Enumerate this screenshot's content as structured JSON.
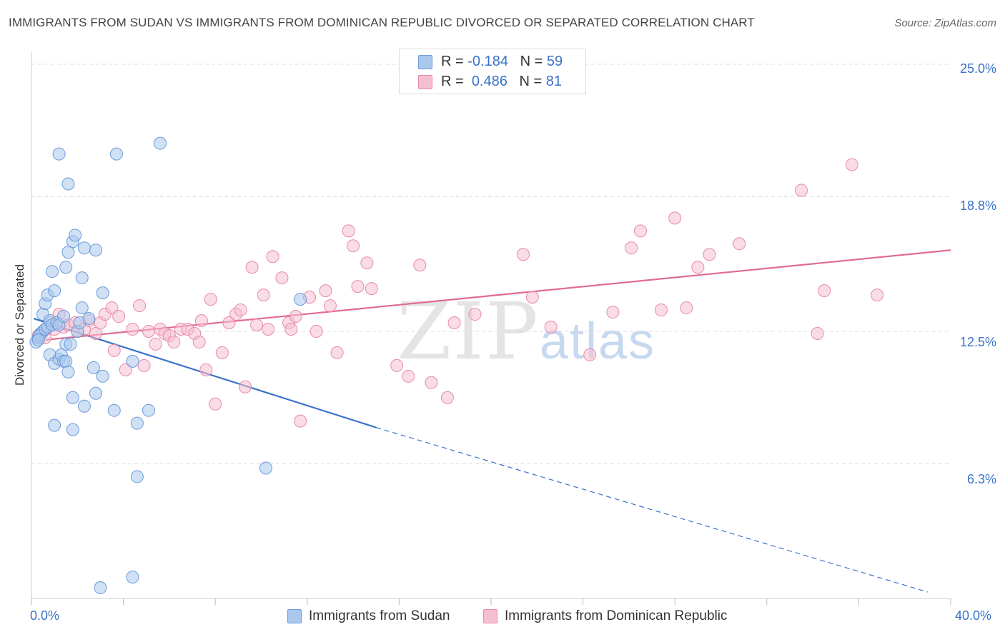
{
  "title": "IMMIGRANTS FROM SUDAN VS IMMIGRANTS FROM DOMINICAN REPUBLIC DIVORCED OR SEPARATED CORRELATION CHART",
  "source": "Source: ZipAtlas.com",
  "watermark": {
    "zip": "ZIP",
    "atlas": "atlas"
  },
  "legend_top": [
    {
      "r_label": "R = ",
      "r_value": "-0.184",
      "n_label": "N = ",
      "n_value": "59"
    },
    {
      "r_label": "R = ",
      "r_value": "0.486",
      "n_label": "N = ",
      "n_value": "81"
    }
  ],
  "colors": {
    "sudan_fill": "#a9c8ee",
    "sudan_stroke": "#6b9bd8",
    "sudan_line": "#3a72c9",
    "dr_fill": "#f6bfd0",
    "dr_stroke": "#e88aa8",
    "dr_line": "#e06b92",
    "grid": "#dddddd"
  },
  "chart_data": {
    "type": "scatter",
    "title": "IMMIGRANTS FROM SUDAN VS IMMIGRANTS FROM DOMINICAN REPUBLIC DIVORCED OR SEPARATED CORRELATION CHART",
    "xlabel": "",
    "ylabel": "Divorced or Separated",
    "xlim": [
      0,
      40
    ],
    "ylim": [
      0,
      25.6
    ],
    "x_tick_labels": [
      "0.0%",
      "40.0%"
    ],
    "y_ticks": [
      6.3,
      12.5,
      18.8,
      25.0
    ],
    "y_tick_labels": [
      "6.3%",
      "12.5%",
      "18.8%",
      "25.0%"
    ],
    "grid": true,
    "legend_position": "top-center",
    "series": [
      {
        "name": "Immigrants from Sudan",
        "r": -0.184,
        "n": 59,
        "trend": {
          "x0": 0.1,
          "y0": 13.1,
          "x1": 15.0,
          "y1": 8.0,
          "dash_x1": 39.0,
          "dash_y1": 0.3
        },
        "points": [
          [
            0.2,
            12.0
          ],
          [
            0.3,
            12.2
          ],
          [
            0.4,
            12.4
          ],
          [
            0.5,
            12.5
          ],
          [
            0.35,
            12.3
          ],
          [
            0.6,
            12.6
          ],
          [
            0.5,
            13.3
          ],
          [
            0.7,
            12.7
          ],
          [
            0.8,
            13.0
          ],
          [
            0.9,
            12.8
          ],
          [
            1.1,
            12.9
          ],
          [
            1.2,
            12.8
          ],
          [
            0.6,
            13.8
          ],
          [
            0.7,
            14.2
          ],
          [
            0.8,
            11.4
          ],
          [
            0.9,
            15.3
          ],
          [
            1.0,
            14.4
          ],
          [
            1.0,
            11.0
          ],
          [
            1.2,
            11.2
          ],
          [
            1.3,
            11.4
          ],
          [
            1.4,
            11.1
          ],
          [
            1.5,
            11.9
          ],
          [
            1.4,
            13.2
          ],
          [
            1.5,
            11.1
          ],
          [
            1.6,
            10.6
          ],
          [
            1.7,
            11.9
          ],
          [
            1.5,
            15.5
          ],
          [
            1.6,
            16.2
          ],
          [
            1.8,
            16.7
          ],
          [
            1.9,
            17.0
          ],
          [
            1.8,
            9.4
          ],
          [
            2.0,
            12.5
          ],
          [
            2.1,
            12.9
          ],
          [
            2.2,
            13.6
          ],
          [
            2.2,
            15.0
          ],
          [
            2.3,
            9.0
          ],
          [
            2.3,
            16.4
          ],
          [
            2.8,
            16.3
          ],
          [
            2.5,
            13.1
          ],
          [
            2.7,
            10.8
          ],
          [
            2.8,
            9.6
          ],
          [
            3.1,
            10.4
          ],
          [
            3.1,
            14.3
          ],
          [
            1.2,
            20.8
          ],
          [
            1.6,
            19.4
          ],
          [
            3.7,
            20.8
          ],
          [
            5.6,
            21.3
          ],
          [
            3.6,
            8.8
          ],
          [
            4.4,
            11.1
          ],
          [
            4.6,
            8.2
          ],
          [
            5.1,
            8.8
          ],
          [
            4.6,
            5.7
          ],
          [
            10.2,
            6.1
          ],
          [
            11.7,
            14.0
          ],
          [
            3.0,
            0.5
          ],
          [
            4.4,
            1.0
          ],
          [
            1.0,
            8.1
          ],
          [
            1.8,
            7.9
          ],
          [
            0.3,
            12.1
          ]
        ]
      },
      {
        "name": "Immigrants from Dominican Republic",
        "r": 0.486,
        "n": 81,
        "trend": {
          "x0": 0.6,
          "y0": 12.1,
          "x1": 40.0,
          "y1": 16.3
        },
        "points": [
          [
            0.3,
            12.3
          ],
          [
            0.5,
            12.5
          ],
          [
            0.6,
            12.2
          ],
          [
            0.8,
            12.9
          ],
          [
            1.0,
            12.6
          ],
          [
            1.2,
            13.3
          ],
          [
            1.4,
            12.7
          ],
          [
            1.6,
            12.8
          ],
          [
            1.9,
            12.9
          ],
          [
            2.0,
            12.5
          ],
          [
            2.3,
            12.6
          ],
          [
            2.5,
            13.0
          ],
          [
            2.8,
            12.4
          ],
          [
            3.0,
            12.9
          ],
          [
            3.2,
            13.3
          ],
          [
            3.5,
            13.6
          ],
          [
            3.6,
            11.6
          ],
          [
            3.8,
            13.2
          ],
          [
            4.1,
            10.7
          ],
          [
            4.4,
            12.6
          ],
          [
            4.7,
            13.7
          ],
          [
            4.9,
            10.9
          ],
          [
            5.1,
            12.5
          ],
          [
            5.4,
            11.9
          ],
          [
            5.6,
            12.6
          ],
          [
            5.8,
            12.4
          ],
          [
            6.0,
            12.3
          ],
          [
            6.2,
            12.0
          ],
          [
            6.5,
            12.6
          ],
          [
            6.8,
            12.6
          ],
          [
            7.1,
            12.4
          ],
          [
            7.3,
            12.0
          ],
          [
            7.4,
            13.0
          ],
          [
            7.6,
            10.7
          ],
          [
            7.8,
            14.0
          ],
          [
            8.0,
            9.1
          ],
          [
            8.3,
            11.5
          ],
          [
            8.6,
            12.9
          ],
          [
            8.9,
            13.3
          ],
          [
            9.1,
            13.5
          ],
          [
            9.3,
            9.9
          ],
          [
            9.6,
            15.5
          ],
          [
            9.8,
            12.8
          ],
          [
            10.1,
            14.2
          ],
          [
            10.3,
            12.6
          ],
          [
            10.5,
            16.0
          ],
          [
            10.9,
            15.0
          ],
          [
            11.2,
            12.9
          ],
          [
            11.3,
            12.6
          ],
          [
            11.5,
            13.2
          ],
          [
            11.7,
            8.3
          ],
          [
            12.1,
            14.1
          ],
          [
            12.4,
            12.5
          ],
          [
            12.8,
            14.4
          ],
          [
            13.0,
            13.7
          ],
          [
            13.3,
            11.5
          ],
          [
            13.8,
            17.2
          ],
          [
            14.0,
            16.5
          ],
          [
            14.2,
            14.6
          ],
          [
            14.6,
            15.7
          ],
          [
            14.8,
            14.5
          ],
          [
            15.9,
            10.9
          ],
          [
            16.4,
            10.4
          ],
          [
            16.9,
            15.6
          ],
          [
            17.4,
            10.1
          ],
          [
            18.1,
            9.4
          ],
          [
            18.4,
            12.9
          ],
          [
            19.3,
            13.3
          ],
          [
            21.4,
            16.1
          ],
          [
            21.8,
            14.1
          ],
          [
            22.6,
            12.7
          ],
          [
            24.3,
            11.4
          ],
          [
            25.3,
            13.4
          ],
          [
            26.1,
            16.4
          ],
          [
            26.5,
            17.2
          ],
          [
            27.4,
            13.5
          ],
          [
            28.0,
            17.8
          ],
          [
            28.5,
            13.6
          ],
          [
            29.0,
            15.5
          ],
          [
            29.5,
            16.1
          ],
          [
            30.8,
            16.6
          ]
        ],
        "extra_points": [
          [
            33.5,
            19.1
          ],
          [
            34.2,
            12.4
          ],
          [
            34.5,
            14.4
          ],
          [
            35.7,
            20.3
          ],
          [
            36.8,
            14.2
          ]
        ]
      }
    ]
  },
  "bottom_legend": [
    "Immigrants from Sudan",
    "Immigrants from Dominican Republic"
  ]
}
